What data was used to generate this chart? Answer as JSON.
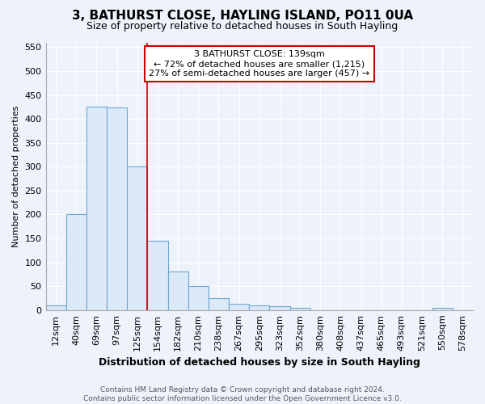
{
  "title1": "3, BATHURST CLOSE, HAYLING ISLAND, PO11 0UA",
  "title2": "Size of property relative to detached houses in South Hayling",
  "xlabel": "Distribution of detached houses by size in South Hayling",
  "ylabel": "Number of detached properties",
  "footnote": "Contains HM Land Registry data © Crown copyright and database right 2024.\nContains public sector information licensed under the Open Government Licence v3.0.",
  "categories": [
    "12sqm",
    "40sqm",
    "69sqm",
    "97sqm",
    "125sqm",
    "154sqm",
    "182sqm",
    "210sqm",
    "238sqm",
    "267sqm",
    "295sqm",
    "323sqm",
    "352sqm",
    "380sqm",
    "408sqm",
    "437sqm",
    "465sqm",
    "493sqm",
    "521sqm",
    "550sqm",
    "578sqm"
  ],
  "values": [
    10,
    200,
    425,
    424,
    300,
    145,
    80,
    50,
    25,
    13,
    10,
    8,
    5,
    0,
    0,
    0,
    0,
    0,
    0,
    5,
    0
  ],
  "bar_color": "#dce9f8",
  "bar_edge_color": "#6ea6d0",
  "ylim": [
    0,
    560
  ],
  "yticks": [
    0,
    50,
    100,
    150,
    200,
    250,
    300,
    350,
    400,
    450,
    500,
    550
  ],
  "property_line_x": 4.5,
  "annotation_box_text": "3 BATHURST CLOSE: 139sqm\n← 72% of detached houses are smaller (1,215)\n27% of semi-detached houses are larger (457) →",
  "annotation_box_color": "#ffffff",
  "annotation_box_edge_color": "#cc0000",
  "bg_color": "#eef3fb",
  "plot_bg_color": "#eef3fb",
  "grid_color": "#ffffff",
  "title1_fontsize": 11,
  "title2_fontsize": 9,
  "xlabel_fontsize": 9,
  "ylabel_fontsize": 8,
  "tick_fontsize": 8,
  "footnote_fontsize": 6.5,
  "annotation_fontsize": 8
}
